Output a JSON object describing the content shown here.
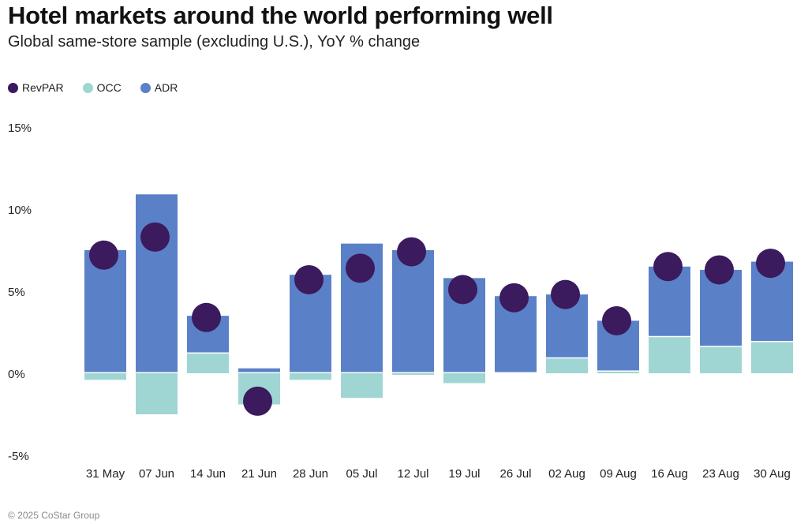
{
  "title": "Hotel markets around the world performing well",
  "subtitle": "Global same-store sample (excluding U.S.), YoY % change",
  "footer": "© 2025 CoStar Group",
  "colors": {
    "revpar": "#3b1a5e",
    "occ": "#9fd6d4",
    "adr": "#5a80c8"
  },
  "chart_data": {
    "type": "bar",
    "categories": [
      "31 May",
      "07 Jun",
      "14 Jun",
      "21 Jun",
      "28 Jun",
      "05 Jul",
      "12 Jul",
      "19 Jul",
      "26 Jul",
      "02 Aug",
      "09 Aug",
      "16 Aug",
      "23 Aug",
      "30 Aug"
    ],
    "series": [
      {
        "name": "RevPAR",
        "kind": "dot",
        "values": [
          7.2,
          8.3,
          3.4,
          -1.7,
          5.7,
          6.4,
          7.4,
          5.1,
          4.6,
          4.8,
          3.2,
          6.5,
          6.3,
          6.7
        ]
      },
      {
        "name": "OCC",
        "kind": "bar",
        "values": [
          -0.4,
          -2.5,
          1.2,
          -1.9,
          -0.4,
          -1.5,
          -0.1,
          -0.6,
          0.0,
          0.9,
          0.1,
          2.2,
          1.6,
          1.9
        ]
      },
      {
        "name": "ADR",
        "kind": "bar-stacked",
        "values": [
          7.5,
          10.9,
          2.3,
          0.3,
          6.0,
          7.9,
          7.5,
          5.8,
          4.7,
          3.9,
          3.1,
          4.3,
          4.7,
          4.9
        ]
      }
    ],
    "ylim": [
      -5,
      15
    ],
    "yticks": [
      15,
      10,
      5,
      0,
      -5
    ],
    "ytick_labels": [
      "15%",
      "10%",
      "5%",
      "0%",
      "-5%"
    ],
    "legend_position": "top-left",
    "grid": false
  }
}
